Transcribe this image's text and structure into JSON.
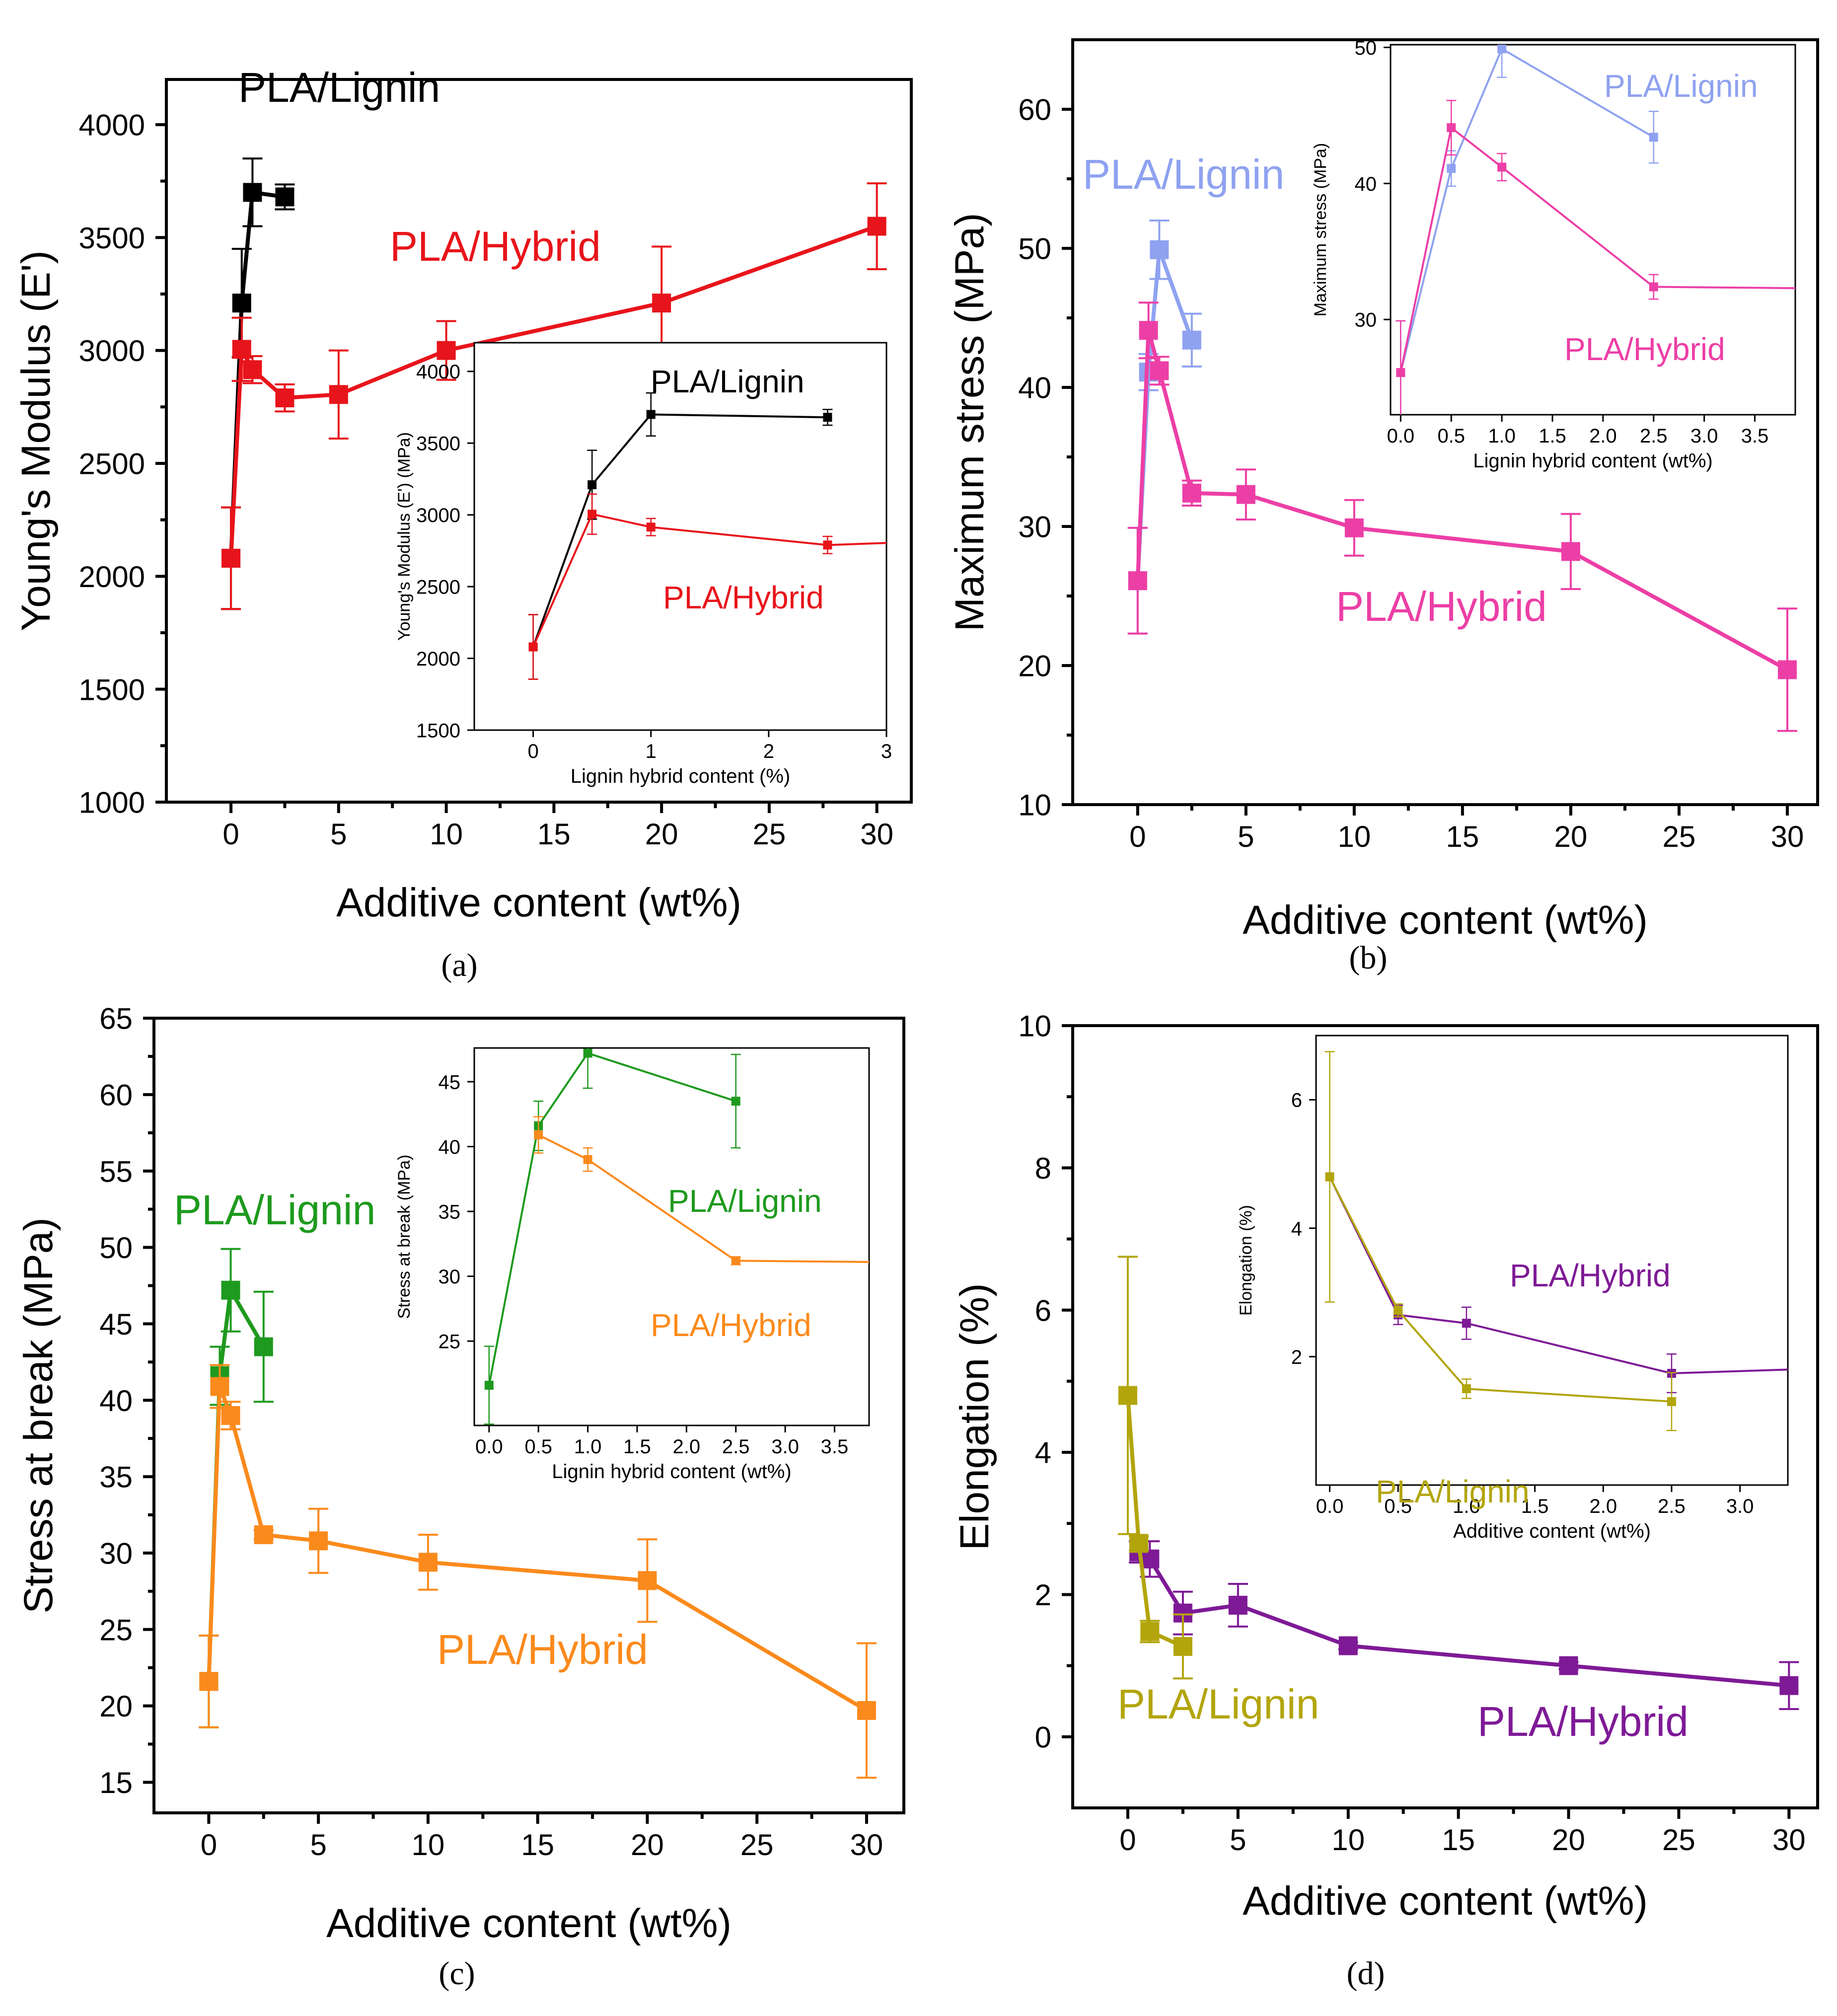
{
  "figure": {
    "panel_labels": [
      "(a)",
      "(b)",
      "(c)",
      "(d)"
    ]
  },
  "chart_data": [
    {
      "id": "a",
      "type": "line",
      "ylabel": "Young's Modulus (E')",
      "xlabel": "Additive content (wt%)",
      "xlim": [
        -3,
        31.6
      ],
      "ylim": [
        1000,
        4200
      ],
      "xticks": [
        0,
        5,
        10,
        15,
        20,
        25,
        30
      ],
      "yticks": [
        1000,
        1500,
        2000,
        2500,
        3000,
        3500,
        4000
      ],
      "series": [
        {
          "name": "PLA/Lignin",
          "color": "#000000",
          "x": [
            0,
            0.5,
            1,
            2.5
          ],
          "y": [
            2080,
            3210,
            3700,
            3680
          ],
          "err": [
            225,
            240,
            150,
            55
          ],
          "label": "PLA/Lignin"
        },
        {
          "name": "PLA/Hybrid",
          "color": "#e8141b",
          "x": [
            0,
            0.5,
            1,
            2.5,
            5,
            10,
            20,
            30
          ],
          "y": [
            2080,
            3005,
            2915,
            2790,
            2805,
            3000,
            3210,
            3550
          ],
          "err": [
            225,
            140,
            60,
            60,
            195,
            130,
            250,
            190
          ],
          "label": "PLA/Hybrid"
        }
      ],
      "inset": {
        "xlabel": "Lignin hybrid content (%)",
        "ylabel": "Young's Modulus (E') (MPa)",
        "xlim": [
          -0.5,
          3
        ],
        "ylim": [
          1500,
          4200
        ],
        "xticks": [
          0,
          1,
          2,
          3
        ],
        "yticks": [
          1500,
          2000,
          2500,
          3000,
          3500,
          4000
        ],
        "series": [
          {
            "name": "PLA/Lignin",
            "color": "#000000",
            "x": [
              0,
              0.5,
              1,
              2.5
            ],
            "y": [
              2080,
              3210,
              3700,
              3680
            ],
            "err": [
              225,
              240,
              150,
              55
            ],
            "label": "PLA/Lignin",
            "tail": false
          },
          {
            "name": "PLA/Hybrid",
            "color": "#e8141b",
            "x": [
              0,
              0.5,
              1,
              2.5
            ],
            "y": [
              2080,
              3005,
              2915,
              2790
            ],
            "err": [
              225,
              140,
              60,
              60
            ],
            "label": "PLA/Hybrid",
            "tail": true,
            "tailY": 2805
          }
        ]
      }
    },
    {
      "id": "b",
      "type": "line",
      "ylabel": "Maximum stress (MPa)",
      "xlabel": "Additive content (wt%)",
      "xlim": [
        -3,
        31.4
      ],
      "ylim": [
        10,
        65
      ],
      "xticks": [
        0,
        5,
        10,
        15,
        20,
        25,
        30
      ],
      "yticks": [
        10,
        20,
        30,
        40,
        50,
        60
      ],
      "series": [
        {
          "name": "PLA/Lignin",
          "color": "#8fa2f0",
          "x": [
            0,
            0.5,
            1,
            2.5
          ],
          "y": [
            26.1,
            41.1,
            49.9,
            43.4
          ],
          "err": [
            3.8,
            1.3,
            2.1,
            1.9
          ],
          "label": "PLA/Lignin"
        },
        {
          "name": "PLA/Hybrid",
          "color": "#ec3fa6",
          "x": [
            0,
            0.5,
            1,
            2.5,
            5,
            10,
            20,
            30
          ],
          "y": [
            26.1,
            44.1,
            41.2,
            32.4,
            32.3,
            29.9,
            28.2,
            19.7
          ],
          "err": [
            3.8,
            2.0,
            1.0,
            0.9,
            1.8,
            2.0,
            2.7,
            4.4
          ],
          "label": "PLA/Hybrid"
        }
      ],
      "inset": {
        "xlabel": "Lignin hybrid content (wt%)",
        "ylabel": "Maximum stress (MPa)",
        "xlim": [
          -0.1,
          3.9
        ],
        "ylim": [
          23,
          50.2
        ],
        "xticks": [
          0.0,
          0.5,
          1.0,
          1.5,
          2.0,
          2.5,
          3.0,
          3.5
        ],
        "yticks": [
          30,
          40,
          50
        ],
        "series": [
          {
            "name": "PLA/Lignin",
            "color": "#8fa2f0",
            "x": [
              0,
              0.5,
              1,
              2.5
            ],
            "y": [
              26.1,
              41.1,
              49.9,
              43.4
            ],
            "err": [
              3.8,
              1.3,
              2.1,
              1.9
            ],
            "label": "PLA/Lignin",
            "tail": false
          },
          {
            "name": "PLA/Hybrid",
            "color": "#ec3fa6",
            "x": [
              0,
              0.5,
              1,
              2.5
            ],
            "y": [
              26.1,
              44.1,
              41.2,
              32.4
            ],
            "err": [
              3.8,
              2.0,
              1.0,
              0.9
            ],
            "label": "PLA/Hybrid",
            "tail": true,
            "tailY": 32.3
          }
        ]
      }
    },
    {
      "id": "c",
      "type": "line",
      "ylabel": "Stress at break (MPa)",
      "xlabel": "Additive content (wt%)",
      "xlim": [
        -2.5,
        31.7
      ],
      "ylim": [
        13,
        65
      ],
      "xticks": [
        0,
        5,
        10,
        15,
        20,
        25,
        30
      ],
      "yticks": [
        15,
        20,
        25,
        30,
        35,
        40,
        45,
        50,
        55,
        60,
        65
      ],
      "series": [
        {
          "name": "PLA/Lignin",
          "color": "#1e9a1e",
          "x": [
            0,
            0.5,
            1,
            2.5
          ],
          "y": [
            21.6,
            41.6,
            47.2,
            43.5
          ],
          "err": [
            3.0,
            1.9,
            2.7,
            3.6
          ],
          "label": "PLA/Lignin"
        },
        {
          "name": "PLA/Hybrid",
          "color": "#fb8a1c",
          "x": [
            0,
            0.5,
            1,
            2.5,
            5,
            10,
            20,
            30
          ],
          "y": [
            21.6,
            40.9,
            39.0,
            31.2,
            30.8,
            29.4,
            28.2,
            19.7
          ],
          "err": [
            3.0,
            1.4,
            0.9,
            0.3,
            2.1,
            1.8,
            2.7,
            4.4
          ],
          "label": "PLA/Hybrid"
        }
      ],
      "inset": {
        "xlabel": "Lignin hybrid content (wt%)",
        "ylabel": "Stress at break (MPa)",
        "xlim": [
          -0.15,
          3.85
        ],
        "ylim": [
          18.5,
          47.6
        ],
        "xticks": [
          0.0,
          0.5,
          1.0,
          1.5,
          2.0,
          2.5,
          3.0,
          3.5
        ],
        "yticks": [
          25,
          30,
          35,
          40,
          45
        ],
        "series": [
          {
            "name": "PLA/Lignin",
            "color": "#1e9a1e",
            "x": [
              0,
              0.5,
              1,
              2.5
            ],
            "y": [
              21.6,
              41.6,
              47.2,
              43.5
            ],
            "err": [
              3.0,
              1.9,
              2.7,
              3.6
            ],
            "label": "PLA/Lignin",
            "tail": false
          },
          {
            "name": "PLA/Hybrid",
            "color": "#fb8a1c",
            "x": [
              0.5,
              1,
              2.5
            ],
            "y": [
              40.9,
              39.0,
              31.2
            ],
            "err": [
              1.4,
              0.9,
              0.3
            ],
            "label": "PLA/Hybrid",
            "tail": true,
            "tailY": 31.1
          }
        ]
      }
    },
    {
      "id": "d",
      "type": "line",
      "ylabel": "Elongation (%)",
      "xlabel": "Additive content (wt%)",
      "xlim": [
        -2.5,
        31.3
      ],
      "ylim": [
        -1,
        10
      ],
      "xticks": [
        0,
        5,
        10,
        15,
        20,
        25,
        30
      ],
      "yticks": [
        0,
        2,
        4,
        6,
        8,
        10
      ],
      "series": [
        {
          "name": "PLA/Hybrid",
          "color": "#7e1a96",
          "x": [
            0.5,
            1,
            2.5,
            5,
            10,
            20,
            30
          ],
          "y": [
            2.6,
            2.5,
            1.74,
            1.85,
            1.28,
            1.0,
            0.72
          ],
          "err": [
            0.15,
            0.25,
            0.3,
            0.3,
            0.05,
            0.05,
            0.33
          ],
          "label": "PLA/Hybrid"
        },
        {
          "name": "PLA/Lignin",
          "color": "#b2a50c",
          "x": [
            0,
            0.5,
            1,
            2.5
          ],
          "y": [
            4.8,
            2.72,
            1.48,
            1.27
          ],
          "err": [
            1.95,
            0.1,
            0.15,
            0.45
          ],
          "label": "PLA/Lignin"
        }
      ],
      "inset": {
        "xlabel": "Additive content (wt%)",
        "ylabel": "Elongation (%)",
        "xlim": [
          -0.1,
          3.35
        ],
        "ylim": [
          0,
          7
        ],
        "xticks": [
          0.0,
          0.5,
          1.0,
          1.5,
          2.0,
          2.5,
          3.0
        ],
        "yticks": [
          2,
          4,
          6
        ],
        "series": [
          {
            "name": "PLA/Hybrid",
            "color": "#7e1a96",
            "x": [
              0,
              0.5,
              1,
              2.5
            ],
            "y": [
              4.8,
              2.65,
              2.52,
              1.74
            ],
            "err": [
              0,
              0.15,
              0.25,
              0.3
            ],
            "label": "PLA/Hybrid",
            "tail": true,
            "tailY": 1.8
          },
          {
            "name": "PLA/Lignin",
            "color": "#b2a50c",
            "x": [
              0,
              0.5,
              1,
              2.5
            ],
            "y": [
              4.8,
              2.72,
              1.5,
              1.3
            ],
            "err": [
              1.95,
              0.1,
              0.15,
              0.45
            ],
            "label": "PLA/Lignin",
            "tail": false
          }
        ]
      }
    }
  ]
}
